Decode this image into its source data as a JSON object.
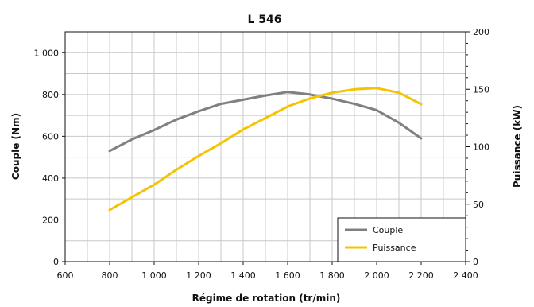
{
  "chart_data": {
    "type": "line",
    "title": "L 546",
    "xlabel": "Régime de rotation (tr/min)",
    "ylabel_left": "Couple (Nm)",
    "ylabel_right": "Puissance (kW)",
    "xlim": [
      600,
      2400
    ],
    "ylim_left": [
      0,
      1100
    ],
    "ylim_right": [
      0,
      200
    ],
    "x_ticks": [
      600,
      800,
      1000,
      1200,
      1400,
      1600,
      1800,
      2000,
      2200,
      2400
    ],
    "x_tick_labels": [
      "600",
      "800",
      "1 000",
      "1 200",
      "1 400",
      "1 600",
      "1 800",
      "2 000",
      "2 200",
      "2 400"
    ],
    "y_left_ticks": [
      0,
      200,
      400,
      600,
      800,
      1000
    ],
    "y_left_tick_labels": [
      "0",
      "200",
      "400",
      "600",
      "800",
      "1 000"
    ],
    "y_right_ticks": [
      0,
      50,
      100,
      150,
      200
    ],
    "y_right_tick_labels": [
      "0",
      "50",
      "100",
      "150",
      "200"
    ],
    "grid": true,
    "legend_position": "bottom-right",
    "series": [
      {
        "name": "Couple",
        "axis": "left",
        "color": "#808080",
        "x": [
          800,
          900,
          1000,
          1100,
          1200,
          1300,
          1400,
          1500,
          1600,
          1700,
          1800,
          1900,
          2000,
          2100,
          2200
        ],
        "values": [
          530,
          585,
          630,
          680,
          720,
          755,
          775,
          795,
          812,
          800,
          780,
          755,
          725,
          665,
          590
        ]
      },
      {
        "name": "Puissance",
        "axis": "right",
        "color": "#f5c400",
        "x": [
          800,
          900,
          1000,
          1100,
          1200,
          1300,
          1400,
          1500,
          1600,
          1700,
          1800,
          1900,
          2000,
          2100,
          2200
        ],
        "values": [
          45,
          56,
          67,
          80,
          92,
          103,
          115,
          125,
          135,
          142,
          147,
          150,
          151,
          147,
          137
        ]
      }
    ]
  }
}
